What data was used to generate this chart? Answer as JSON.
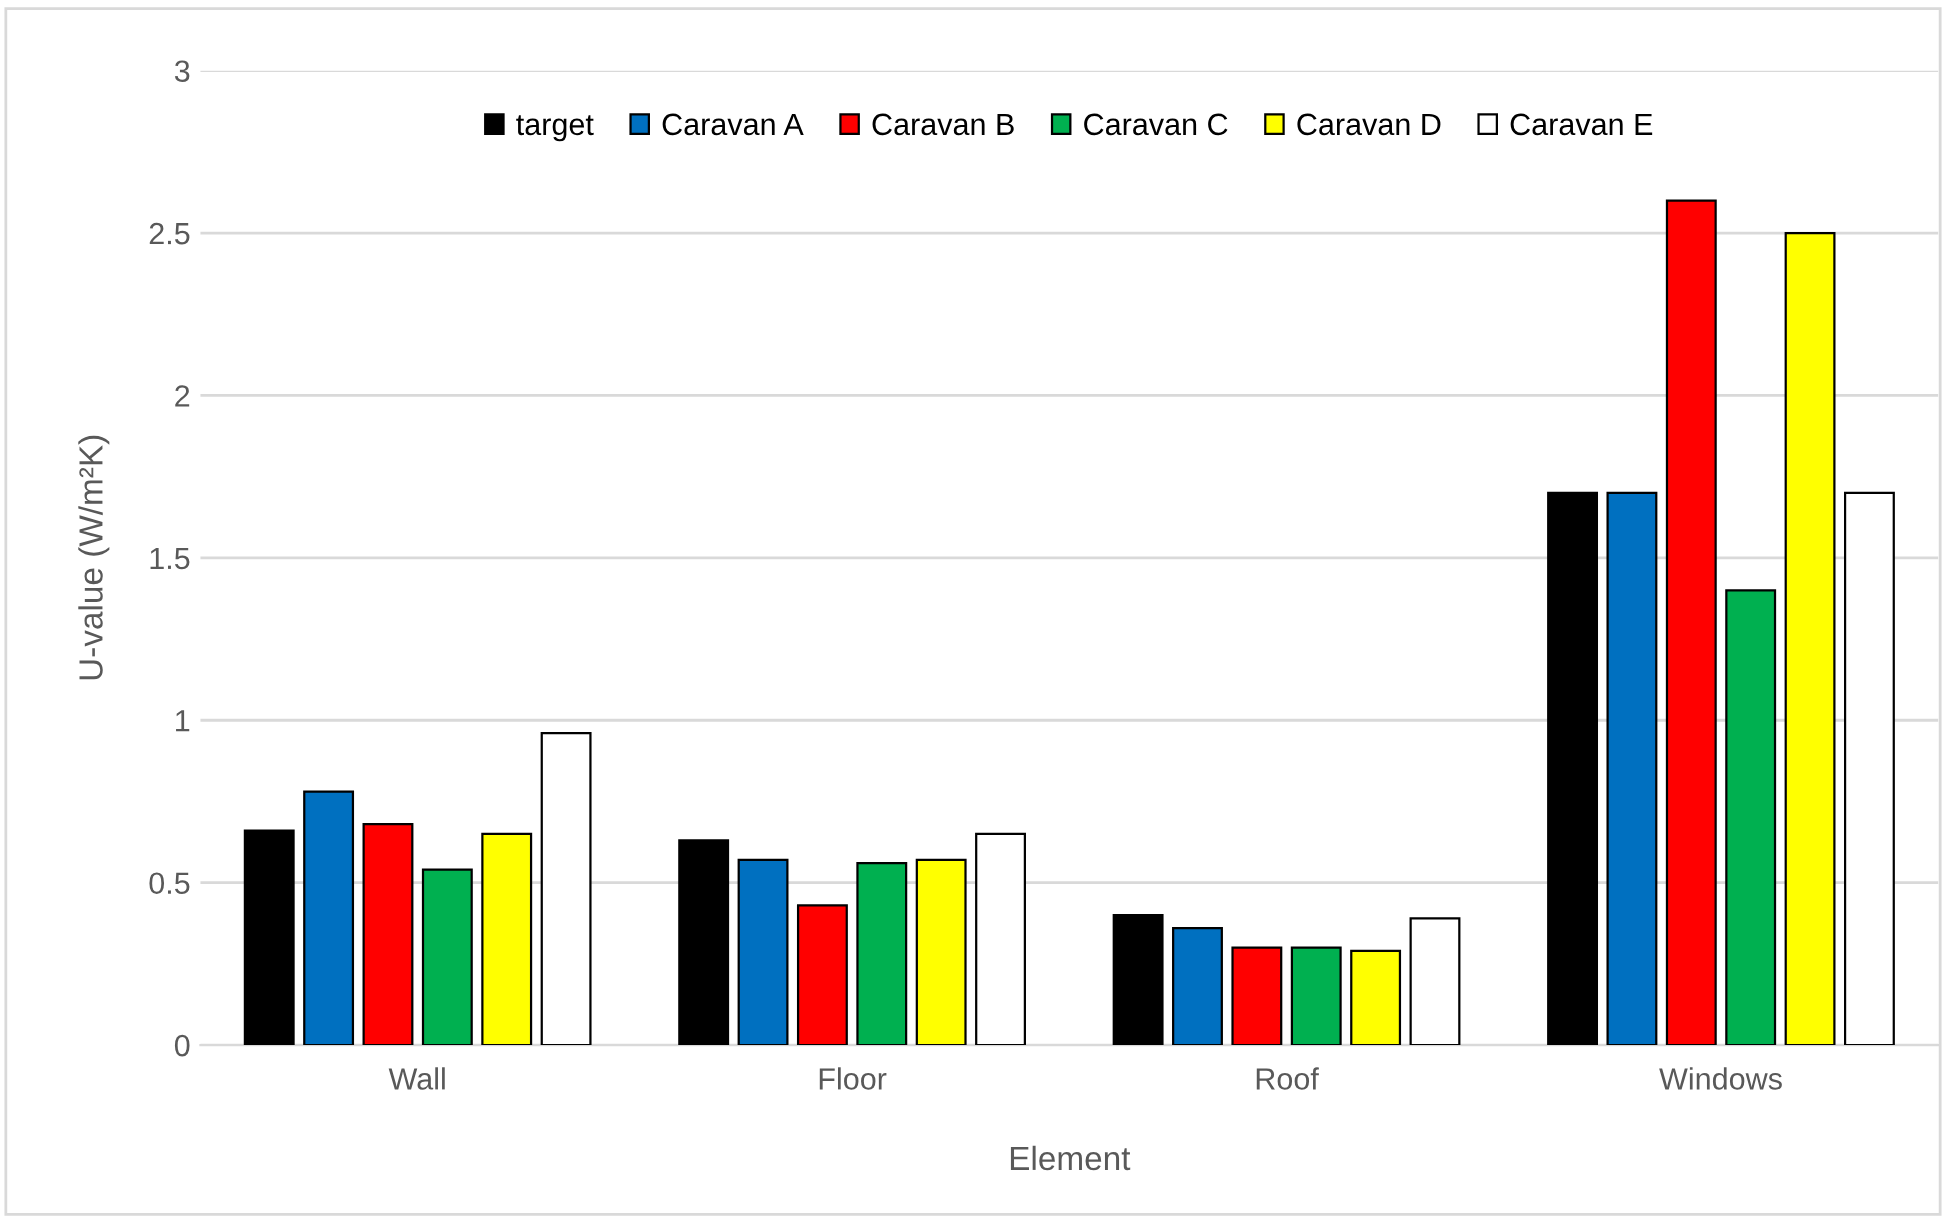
{
  "chart_data": {
    "type": "bar",
    "xlabel": "Element",
    "ylabel": "U-value (W/m²K)",
    "categories": [
      "Wall",
      "Floor",
      "Roof",
      "Windows"
    ],
    "series": [
      {
        "name": "target",
        "color": "#000000",
        "values": [
          0.66,
          0.63,
          0.4,
          1.7
        ]
      },
      {
        "name": "Caravan A",
        "color": "#0070c0",
        "values": [
          0.78,
          0.57,
          0.36,
          1.7
        ]
      },
      {
        "name": "Caravan B",
        "color": "#ff0000",
        "values": [
          0.68,
          0.43,
          0.3,
          2.6
        ]
      },
      {
        "name": "Caravan C",
        "color": "#00b050",
        "values": [
          0.54,
          0.56,
          0.3,
          1.4
        ]
      },
      {
        "name": "Caravan D",
        "color": "#ffff00",
        "values": [
          0.65,
          0.57,
          0.29,
          2.5
        ]
      },
      {
        "name": "Caravan E",
        "color": "#ffffff",
        "values": [
          0.96,
          0.65,
          0.39,
          1.7
        ]
      }
    ],
    "ylim": [
      0,
      3
    ],
    "yticks": [
      0,
      0.5,
      1,
      1.5,
      2,
      2.5,
      3
    ],
    "grid": "y",
    "legend": "top"
  }
}
